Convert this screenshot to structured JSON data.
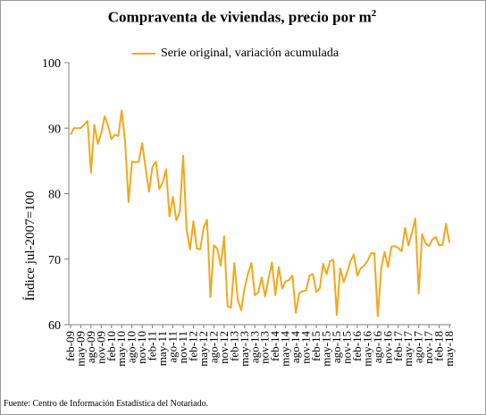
{
  "source_note": "Fuente: Centro de Información Estadística del Notariado.",
  "colors": {
    "line": "#f2a81d",
    "axis": "#7f7f7f"
  },
  "chart_data": {
    "type": "line",
    "title": "Compraventa de viviendas, precio por m",
    "title_superscript": "2",
    "ylabel": "Índice jul-2007=100",
    "xlabel": "",
    "ylim": [
      60,
      100
    ],
    "yticks": [
      60,
      70,
      80,
      90,
      100
    ],
    "grid": false,
    "legend_position": "top",
    "x_tick_labels": [
      "feb-09",
      "may-09",
      "ago-09",
      "nov-09",
      "feb-10",
      "may-10",
      "ago-10",
      "nov-10",
      "feb-11",
      "may-11",
      "ago-11",
      "nov-11",
      "feb-12",
      "may-12",
      "ago-12",
      "nov-12",
      "feb-13",
      "may-13",
      "ago-13",
      "nov-13",
      "feb-14",
      "may-14",
      "ago-14",
      "nov-14",
      "feb-15",
      "may-15",
      "ago-15",
      "nov-15",
      "feb-16",
      "may-16",
      "ago-16",
      "nov-16",
      "feb-17",
      "may-17",
      "ago-17",
      "nov-17",
      "feb-18",
      "may-18"
    ],
    "x_start": "feb-09",
    "x_end": "may-18",
    "series": [
      {
        "name": "Serie original, variación acumulada",
        "values": [
          89.0,
          90.0,
          90.0,
          90.0,
          90.5,
          91.1,
          83.2,
          90.5,
          87.6,
          89.2,
          91.8,
          90.4,
          88.3,
          89.0,
          88.8,
          92.7,
          87.9,
          78.7,
          84.9,
          84.8,
          84.9,
          87.7,
          83.9,
          80.3,
          84.1,
          84.9,
          80.7,
          81.7,
          83.7,
          76.5,
          79.5,
          75.9,
          77.2,
          85.8,
          74.6,
          71.5,
          75.8,
          71.6,
          71.5,
          74.8,
          76.0,
          64.2,
          72.1,
          71.6,
          69.0,
          73.5,
          62.8,
          62.6,
          69.4,
          63.8,
          62.2,
          65.6,
          67.8,
          69.4,
          64.5,
          64.9,
          67.2,
          64.3,
          67.0,
          69.5,
          64.5,
          68.8,
          65.5,
          66.6,
          66.8,
          67.5,
          61.8,
          64.8,
          65.1,
          65.2,
          67.5,
          67.7,
          65.0,
          65.5,
          69.3,
          67.7,
          69.7,
          69.9,
          61.5,
          68.6,
          66.5,
          67.9,
          69.7,
          70.7,
          67.5,
          68.6,
          69.0,
          69.7,
          70.9,
          70.9,
          61.3,
          68.5,
          71.1,
          68.8,
          71.9,
          72.0,
          71.7,
          71.2,
          74.8,
          72.1,
          74.0,
          76.2,
          64.8,
          73.8,
          72.4,
          72.0,
          73.0,
          73.4,
          72.1,
          72.2,
          75.4,
          72.5
        ]
      }
    ]
  }
}
